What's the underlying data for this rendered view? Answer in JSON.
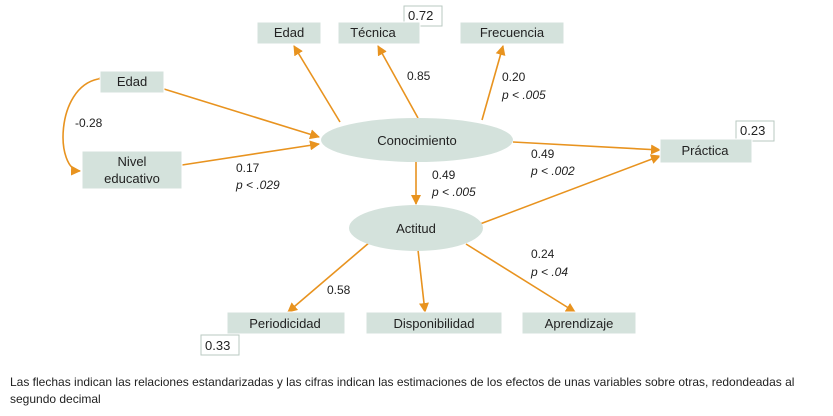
{
  "nodes": {
    "edad_top": "Edad",
    "tecnica": "Técnica",
    "frecuencia": "Frecuencia",
    "edad_left": "Edad",
    "nivel_line1": "Nivel",
    "nivel_line2": "educativo",
    "conocimiento": "Conocimiento",
    "practica": "Práctica",
    "actitud": "Actitud",
    "periodicidad": "Periodicidad",
    "disponibilidad": "Disponibilidad",
    "aprendizaje": "Aprendizaje"
  },
  "r_squared": {
    "tecnica": "0.72",
    "practica": "0.23",
    "periodicidad": "0.33"
  },
  "coefficients": {
    "edad_nivel": "-0.28",
    "conocimiento_tecnica": "0.85",
    "conocimiento_frecuencia": "0.20",
    "conocimiento_frecuencia_p": "p < .005",
    "nivel_conocimiento": "0.17",
    "nivel_conocimiento_p": "p < .029",
    "conocimiento_actitud": "0.49",
    "conocimiento_actitud_p": "p < .005",
    "conocimiento_practica": "0.49",
    "conocimiento_practica_p": "p < .002",
    "actitud_periodicidad": "0.58",
    "actitud_aprendizaje": "0.24",
    "actitud_aprendizaje_p": "p < .04"
  },
  "caption": "Las flechas indican las relaciones estandarizadas y las cifras indican las estimaciones de los efectos de unas variables sobre otras, redondeadas al segundo decimal",
  "colors": {
    "arrow": "#e8931f",
    "node_fill": "#d4e2dc"
  }
}
